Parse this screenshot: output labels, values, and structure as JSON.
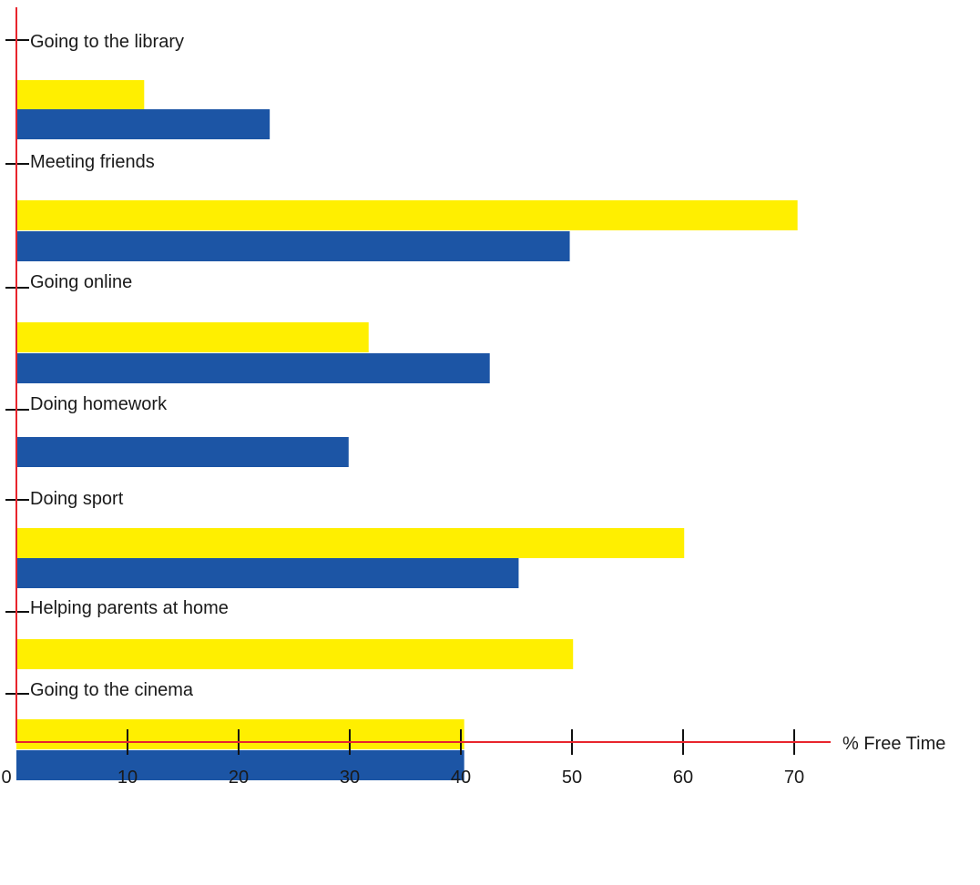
{
  "colors": {
    "axis": "#e8252d",
    "series_yellow": "#ffef00",
    "series_blue": "#1c55a5",
    "tick": "#111111"
  },
  "chart_data": {
    "type": "bar",
    "orientation": "horizontal",
    "categories": [
      "Going to the library",
      "Meeting friends",
      "Going online",
      "Doing homework",
      "Doing sport",
      "Helping parents at home",
      "Going to the cinema"
    ],
    "series": [
      {
        "color": "#ffef00",
        "values": [
          11.5,
          70.3,
          31.7,
          null,
          60.1,
          50.1,
          40.3
        ]
      },
      {
        "color": "#1c55a5",
        "values": [
          22.8,
          49.8,
          42.6,
          29.9,
          45.2,
          null,
          40.3
        ]
      }
    ],
    "xlabel": "% Free Time",
    "xlim": [
      0,
      73
    ],
    "xticks": [
      0,
      10,
      20,
      30,
      40,
      50,
      60,
      70
    ],
    "grid": false,
    "legend": "none"
  }
}
